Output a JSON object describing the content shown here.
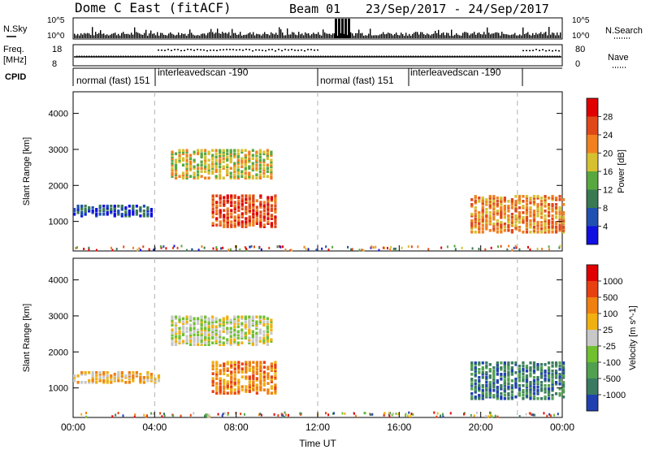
{
  "header": {
    "radar": "Dome C East (fitACF)",
    "beam": "Beam 01",
    "dates": "23/Sep/2017 - 24/Sep/2017"
  },
  "panels": {
    "nsky": {
      "left_label": "N.Sky",
      "ticks": [
        "10^5",
        "10^0"
      ],
      "right_ticks": [
        "10^5",
        "10^0"
      ],
      "right_label": "N.Search"
    },
    "freq": {
      "left_label1": "Freq.",
      "left_label2": "[MHz]",
      "ticks": [
        "18",
        "8"
      ],
      "right_ticks": [
        "80",
        "0"
      ],
      "right_label": "Nave"
    },
    "cpid": {
      "label": "CPID",
      "segments": [
        "normal (fast) 151",
        "interleavedscan -190",
        "normal (fast) 151",
        "interleavedscan -190"
      ]
    }
  },
  "chart_data": [
    {
      "type": "heatmap",
      "name": "power",
      "ylabel": "Slant Range [km]",
      "yticks": [
        "4000",
        "3000",
        "2000",
        "1000"
      ],
      "ylim": [
        180,
        4600
      ],
      "colorbar_label": "Power [dB]",
      "colorbar_ticks": [
        "28",
        "24",
        "20",
        "16",
        "12",
        "8",
        "4"
      ],
      "colors": [
        "#1010e0",
        "#2050b0",
        "#3a7a50",
        "#58a840",
        "#d6c030",
        "#f08020",
        "#e04818",
        "#e00000"
      ],
      "regions": [
        {
          "t0": 0.0,
          "t1": 3.8,
          "r0": 1150,
          "r1": 1450,
          "level": 1
        },
        {
          "t0": 4.8,
          "t1": 9.8,
          "r0": 2200,
          "r1": 3000,
          "level": 4
        },
        {
          "t0": 6.8,
          "t1": 10.0,
          "r0": 850,
          "r1": 1750,
          "level": 6
        },
        {
          "t0": 19.5,
          "t1": 24.0,
          "r0": 700,
          "r1": 1700,
          "level": 5
        }
      ]
    },
    {
      "type": "heatmap",
      "name": "velocity",
      "ylabel": "Slant Range [km]",
      "xlabel": "Time UT",
      "yticks": [
        "4000",
        "3000",
        "2000",
        "1000"
      ],
      "ylim": [
        180,
        4600
      ],
      "xticks": [
        "00:00",
        "04:00",
        "08:00",
        "12:00",
        "16:00",
        "20:00",
        "00:00"
      ],
      "xlim": [
        0,
        24
      ],
      "colorbar_label": "Velocity [m s^-1]",
      "colorbar_ticks": [
        "1000",
        "500",
        "100",
        "25",
        "-25",
        "-100",
        "-500",
        "-1000"
      ],
      "colors": [
        "#2040b0",
        "#3a7a60",
        "#50a050",
        "#70c030",
        "#c8c8c8",
        "#f0b010",
        "#f08010",
        "#e84010",
        "#e00000"
      ],
      "regions": [
        {
          "t0": 0.0,
          "t1": 4.2,
          "r0": 1150,
          "r1": 1450,
          "level": 5
        },
        {
          "t0": 4.8,
          "t1": 9.8,
          "r0": 2200,
          "r1": 3000,
          "level": 4
        },
        {
          "t0": 6.8,
          "t1": 10.0,
          "r0": 850,
          "r1": 1750,
          "level": 6
        },
        {
          "t0": 19.5,
          "t1": 24.0,
          "r0": 700,
          "r1": 1700,
          "level": 1
        }
      ]
    }
  ],
  "colors": {
    "dash": "#b0b0b0"
  }
}
